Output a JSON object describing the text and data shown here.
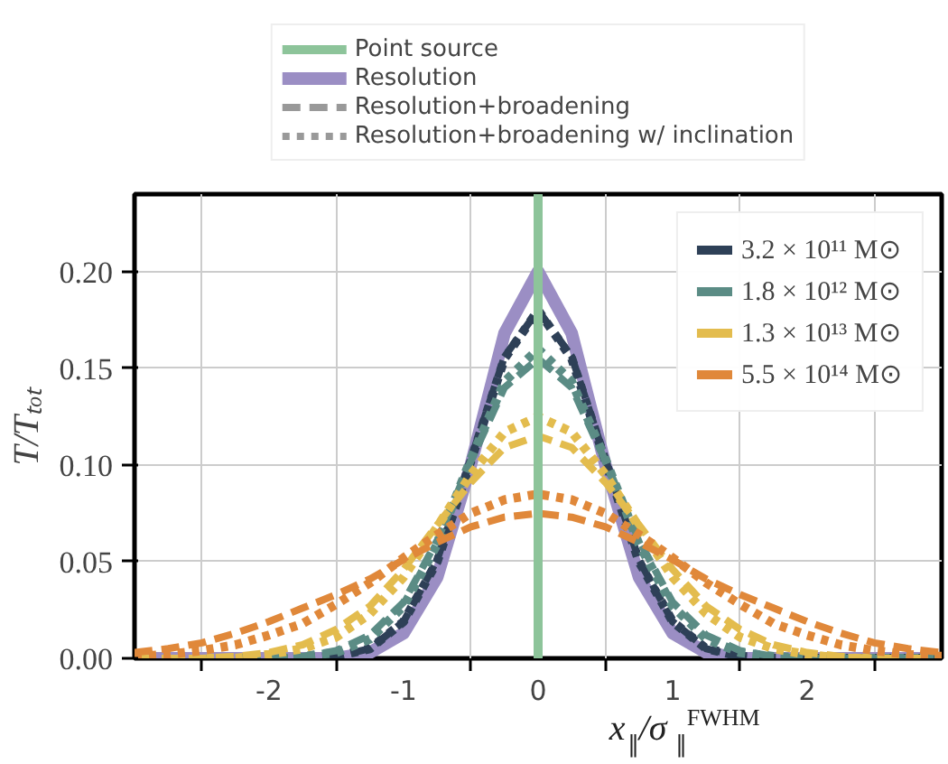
{
  "chart_data": {
    "type": "line",
    "xlabel": "x$_{∥}$/σ$_{∥}$$^{FWHM}$",
    "ylabel": "T/Tₜₒₜ",
    "annotations": [
      "Resolution+broadening",
      "Resolution+broadening w/ inclination"
    ],
    "x": [
      -3,
      -2.75,
      -2.5,
      -2.25,
      -2,
      -1.75,
      -1.5,
      -1.25,
      -1,
      -0.75,
      -0.5,
      -0.25,
      0,
      0.25,
      0.5,
      0.75,
      1,
      1.25,
      1.5,
      1.75,
      2,
      2.25,
      2.5,
      2.75,
      3
    ],
    "xlim": [
      -3,
      3
    ],
    "xticks": [
      {
        "value": -2.5,
        "label": null
      },
      -2,
      {
        "value": -1.5,
        "label": null
      },
      -1,
      {
        "value": -0.5,
        "label": null
      },
      0,
      {
        "value": 0.5,
        "label": null
      },
      1,
      {
        "value": 1.5,
        "label": null
      },
      2,
      {
        "value": 2.5,
        "label": null
      }
    ],
    "ylim": [
      0,
      0.24
    ],
    "yticks": [
      {
        "value": 0,
        "label": "0.00"
      },
      {
        "value": 0.05,
        "label": "0.05"
      },
      {
        "value": 0.1,
        "label": "0.10"
      },
      {
        "value": 0.15,
        "label": "0.15"
      },
      {
        "value": 0.2,
        "label": "0.20"
      }
    ],
    "grid": true,
    "legend": "top right",
    "ref_lines": [
      {
        "axis": "x",
        "value": 0,
        "label": "Point source",
        "color": "#8dc49a"
      }
    ],
    "series": [
      {
        "name": "Resolution",
        "color": "#9b8ec4",
        "line_style": "solid",
        "values": [
          0,
          0,
          0,
          0,
          0,
          0,
          0,
          0.003,
          0.013,
          0.042,
          0.1,
          0.168,
          0.2,
          0.168,
          0.1,
          0.042,
          0.013,
          0.003,
          0,
          0,
          0,
          0,
          0,
          0,
          0
        ]
      },
      {
        "name": "3.2 × 10¹¹ M⊙",
        "color": "#2e4057",
        "line_style": "dashed",
        "values": [
          0,
          0,
          0,
          0,
          0,
          0,
          0.001,
          0.005,
          0.019,
          0.051,
          0.103,
          0.156,
          0.18,
          0.156,
          0.103,
          0.051,
          0.019,
          0.005,
          0.001,
          0,
          0,
          0,
          0,
          0,
          0
        ]
      },
      {
        "color": "#2e4057",
        "line_style": "dotted",
        "values": [
          0,
          0,
          0,
          0,
          0,
          0,
          0.001,
          0.005,
          0.019,
          0.05,
          0.102,
          0.155,
          0.18,
          0.155,
          0.102,
          0.05,
          0.019,
          0.005,
          0.001,
          0,
          0,
          0,
          0,
          0,
          0
        ]
      },
      {
        "name": "1.8 × 10¹² M⊙",
        "color": "#5b8c85",
        "line_style": "dashed",
        "values": [
          0,
          0,
          0,
          0,
          0,
          0.001,
          0.004,
          0.012,
          0.029,
          0.061,
          0.102,
          0.14,
          0.155,
          0.14,
          0.102,
          0.061,
          0.029,
          0.012,
          0.004,
          0.001,
          0,
          0,
          0,
          0,
          0
        ]
      },
      {
        "color": "#5b8c85",
        "line_style": "dotted",
        "values": [
          0,
          0,
          0,
          0,
          0,
          0.001,
          0.003,
          0.01,
          0.027,
          0.059,
          0.103,
          0.143,
          0.16,
          0.143,
          0.103,
          0.059,
          0.027,
          0.01,
          0.003,
          0.001,
          0,
          0,
          0,
          0,
          0
        ]
      },
      {
        "name": "1.3 × 10¹³ M⊙",
        "color": "#e3bc4e",
        "line_style": "dashed",
        "values": [
          0,
          0,
          0,
          0.001,
          0.003,
          0.007,
          0.015,
          0.027,
          0.046,
          0.069,
          0.091,
          0.109,
          0.115,
          0.109,
          0.091,
          0.069,
          0.046,
          0.027,
          0.015,
          0.007,
          0.003,
          0.001,
          0,
          0,
          0
        ]
      },
      {
        "color": "#e3bc4e",
        "line_style": "dotted",
        "values": [
          0,
          0,
          0,
          0,
          0.002,
          0.005,
          0.011,
          0.023,
          0.042,
          0.068,
          0.095,
          0.117,
          0.125,
          0.117,
          0.095,
          0.068,
          0.042,
          0.023,
          0.011,
          0.005,
          0.002,
          0,
          0,
          0,
          0
        ]
      },
      {
        "name": "5.5 × 10¹⁴ M⊙",
        "color": "#e0883a",
        "line_style": "dashed",
        "values": [
          0.003,
          0.005,
          0.008,
          0.013,
          0.019,
          0.026,
          0.033,
          0.041,
          0.051,
          0.06,
          0.068,
          0.073,
          0.075,
          0.073,
          0.068,
          0.06,
          0.051,
          0.041,
          0.033,
          0.026,
          0.019,
          0.013,
          0.008,
          0.005,
          0.003
        ]
      },
      {
        "color": "#e0883a",
        "line_style": "dotted",
        "values": [
          0.001,
          0.002,
          0.004,
          0.007,
          0.012,
          0.018,
          0.028,
          0.039,
          0.052,
          0.064,
          0.075,
          0.082,
          0.085,
          0.082,
          0.075,
          0.064,
          0.052,
          0.039,
          0.028,
          0.018,
          0.012,
          0.007,
          0.004,
          0.002,
          0.001
        ]
      }
    ]
  }
}
